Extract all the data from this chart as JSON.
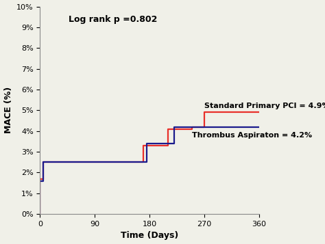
{
  "title": "",
  "xlabel": "Time (Days)",
  "ylabel": "MACE (%)",
  "log_rank_text": "Log rank p =0.802",
  "xlim": [
    0,
    360
  ],
  "ylim": [
    0,
    0.1
  ],
  "xticks": [
    0,
    90,
    180,
    270,
    360
  ],
  "yticks": [
    0,
    0.01,
    0.02,
    0.03,
    0.04,
    0.05,
    0.06,
    0.07,
    0.08,
    0.09,
    0.1
  ],
  "red_label": "Standard Primary PCI = 4.9%",
  "blue_label": "Thrombus Aspiraton = 4.2%",
  "red_color": "#e8302a",
  "blue_color": "#1a1a8c",
  "red_x": [
    0,
    0,
    5,
    5,
    170,
    170,
    210,
    210,
    250,
    250,
    270,
    270,
    360
  ],
  "red_y": [
    0,
    0.017,
    0.017,
    0.025,
    0.025,
    0.033,
    0.033,
    0.041,
    0.041,
    0.042,
    0.042,
    0.049,
    0.049
  ],
  "blue_x": [
    0,
    0,
    5,
    5,
    175,
    175,
    220,
    220,
    255,
    255,
    360
  ],
  "blue_y": [
    0,
    0.016,
    0.016,
    0.025,
    0.025,
    0.034,
    0.034,
    0.042,
    0.042,
    0.042,
    0.042
  ],
  "background_color": "#f0f0e8",
  "linewidth": 1.6,
  "annotation_fontsize": 8,
  "axis_fontsize": 9,
  "tick_fontsize": 8,
  "log_rank_fontsize": 9
}
